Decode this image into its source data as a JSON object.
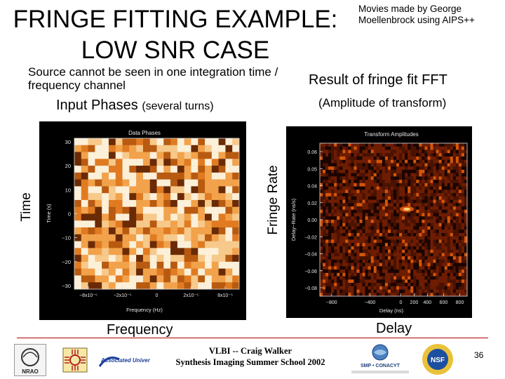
{
  "slide": {
    "title_line1": "FRINGE FITTING EXAMPLE:",
    "title_line2": "LOW SNR CASE",
    "credit": "Movies made by George Moellenbrock using AIPS++",
    "subtitle": "Source cannot be seen in one integration time / frequency channel",
    "input_phases": "Input Phases",
    "input_phases_note": "(several turns)",
    "result_title": "Result of fringe fit FFT",
    "result_sub": "(Amplitude of transform)",
    "time_label": "Time",
    "fringe_rate_label": "Fringe Rate",
    "frequency_label": "Frequency",
    "delay_label": "Delay",
    "footer_line1": "VLBI -- Craig Walker",
    "footer_line2": "Synthesis Imaging Summer School 2002",
    "page_number": "36"
  },
  "left_plot": {
    "title": "Data Phases",
    "xlabel": "Frequency (Hz)",
    "ylabel": "Time (s)",
    "yticks": [
      "30",
      "20",
      "10",
      "0",
      "−10",
      "−20",
      "−30"
    ],
    "xticks": [
      "−8x10⁻⁵",
      "−2x10⁻⁵",
      "0",
      "2x10⁻⁵",
      "8x10⁻⁵"
    ],
    "colors": {
      "light": "#fdf0d8",
      "mid": "#f2a24a",
      "dark": "#b85a10",
      "deep": "#6a2a05"
    }
  },
  "right_plot": {
    "title": "Transform Amplitudes",
    "xlabel": "Delay (ns)",
    "ylabel": "Delay−Rate (ns/s)",
    "yticks": [
      "0.06",
      "0.05",
      "0.04",
      "0.02",
      "0.00",
      "−0.02",
      "−0.04",
      "−0.06",
      "−0.08"
    ],
    "xticks": [
      "−800",
      "−400",
      "0",
      "200",
      "400",
      "600",
      "800"
    ],
    "colors": {
      "low": "#1a0400",
      "mid": "#6e1d02",
      "high": "#d4560a",
      "peak": "#ffd27a"
    }
  },
  "logos": {
    "nrao": "NRAO",
    "associated": "Associated Universities Inc",
    "smp_conacyt": "SMP • CONACYT",
    "nsf": "NSF"
  }
}
